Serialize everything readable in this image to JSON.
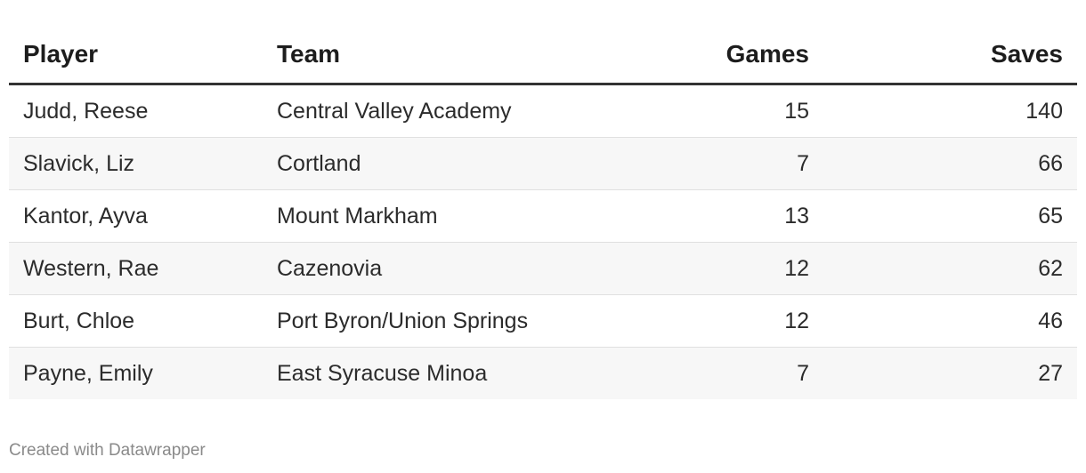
{
  "table": {
    "headers": [
      "Player",
      "Team",
      "Games",
      "Saves"
    ],
    "rows": [
      [
        "Judd, Reese",
        "Central Valley Academy",
        15,
        140
      ],
      [
        "Slavick, Liz",
        "Cortland",
        7,
        66
      ],
      [
        "Kantor, Ayva",
        "Mount Markham",
        13,
        65
      ],
      [
        "Western, Rae",
        "Cazenovia",
        12,
        62
      ],
      [
        "Burt, Chloe",
        "Port Byron/Union Springs",
        12,
        46
      ],
      [
        "Payne, Emily",
        "East Syracuse Minoa",
        7,
        27
      ]
    ]
  },
  "footer": "Created with Datawrapper"
}
